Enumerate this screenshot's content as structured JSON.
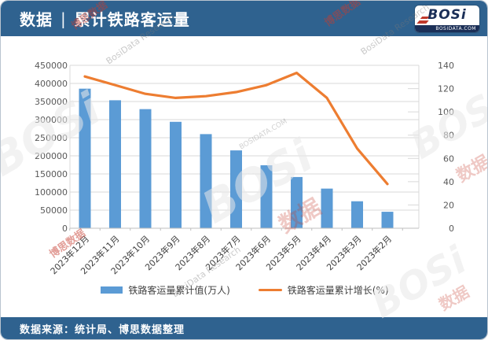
{
  "header": {
    "prefix": "数据",
    "separator": "|",
    "title": "累计铁路客运量"
  },
  "logo": {
    "name": "BOSi",
    "domain": "BOSIDATA.COM"
  },
  "footer": {
    "source_label": "数据来源：统计局、博思数据整理"
  },
  "watermark": {
    "brand": "BOSi",
    "cn": "博思数据",
    "research": "BosiData Research",
    "domain": "BOSIDATA.COM",
    "data_cn": "数据"
  },
  "colors": {
    "header_bg": "#2F628F",
    "bar": "#5B9BD5",
    "line": "#ED7D31",
    "grid": "#D9D9D9",
    "axis_text": "#595959",
    "label_text": "#404040"
  },
  "chart_data": {
    "type": "bar",
    "subtype": "bar+line dual-axis",
    "categories": [
      "2023年12月",
      "2023年11月",
      "2023年10月",
      "2023年9月",
      "2023年8月",
      "2023年7月",
      "2023年6月",
      "2023年5月",
      "2023年4月",
      "2023年3月",
      "2023年2月"
    ],
    "series": [
      {
        "name": "铁路客运量累计值(万人)",
        "type": "bar",
        "axis": "left",
        "color": "#5B9BD5",
        "values": [
          385500,
          353500,
          329000,
          294000,
          260000,
          215000,
          174000,
          141500,
          109500,
          74500,
          45500
        ]
      },
      {
        "name": "铁路客运量累计增长(%)",
        "type": "line",
        "axis": "right",
        "color": "#ED7D31",
        "values": [
          130.4,
          123,
          115.5,
          112,
          113.5,
          117,
          123,
          133.5,
          112,
          68.5,
          38
        ]
      }
    ],
    "left_axis": {
      "min": 0,
      "max": 450000,
      "step": 50000
    },
    "right_axis": {
      "min": 0,
      "max": 140,
      "step": 20
    },
    "grid": "horizontal",
    "legend_position": "bottom",
    "x_label_rotation": -45
  }
}
